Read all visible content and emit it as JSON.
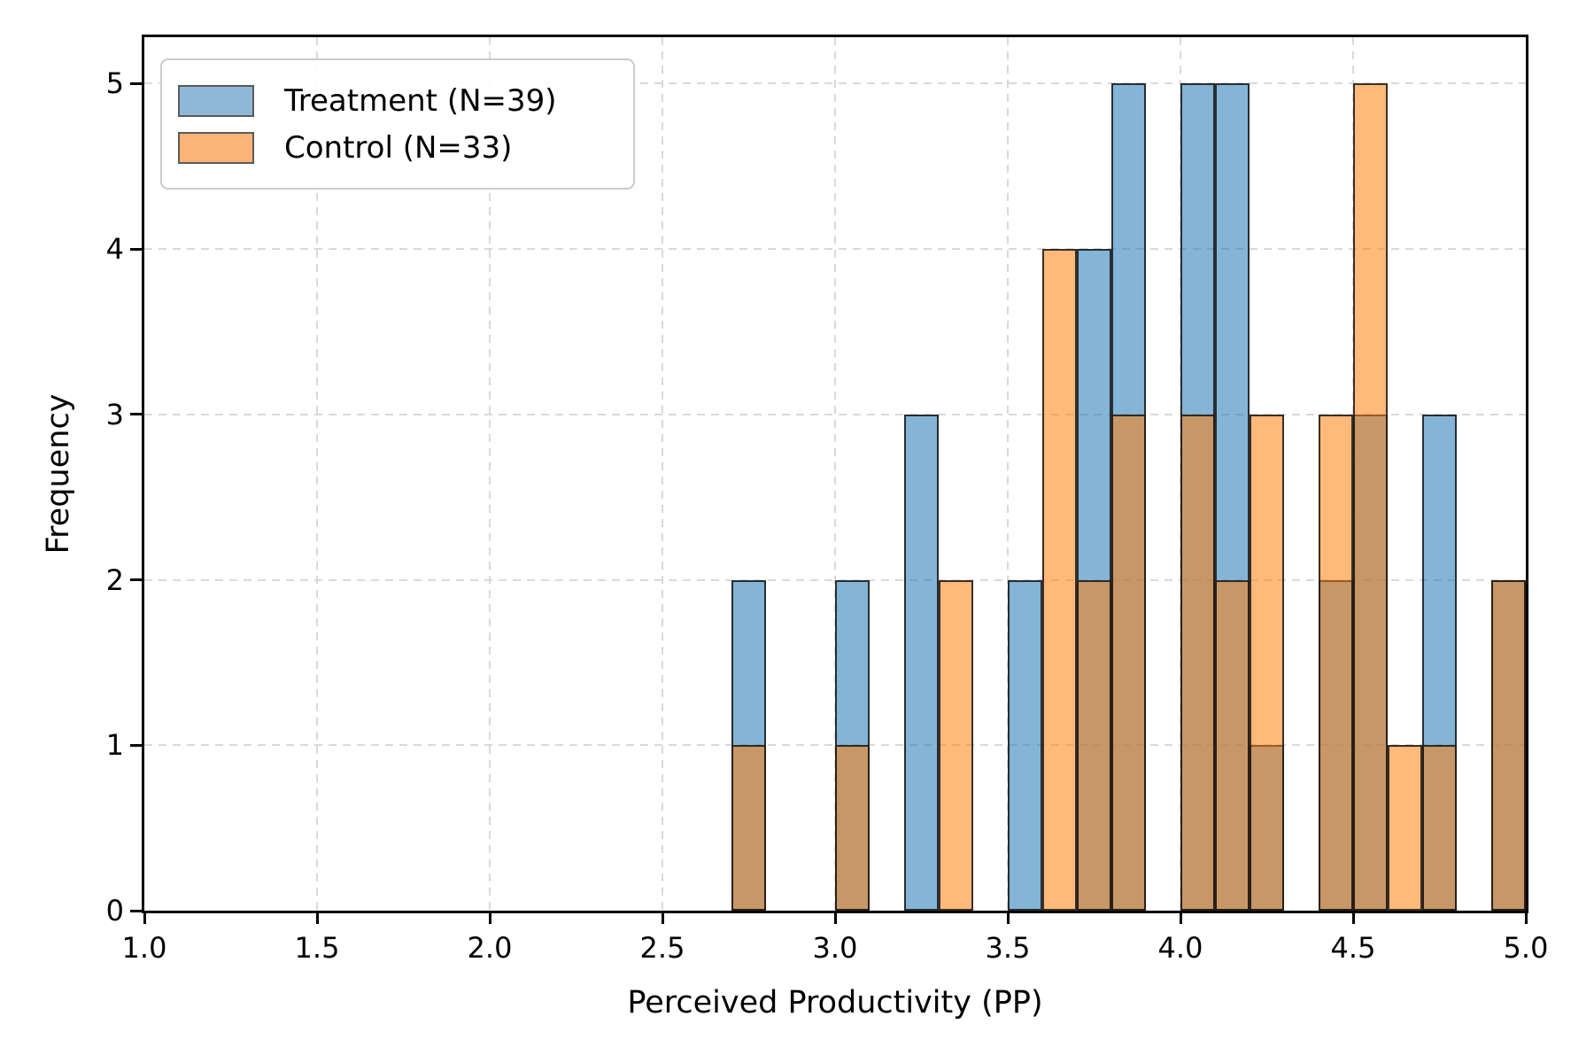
{
  "chart_data": {
    "type": "bar",
    "subtype": "overlaid-histogram",
    "title": "",
    "xlabel": "Perceived Productivity (PP)",
    "ylabel": "Frequency",
    "xlim": [
      1.0,
      5.0
    ],
    "ylim": [
      0,
      5.28
    ],
    "grid": true,
    "grid_style": "dashed",
    "legend_position": "upper left",
    "bin_width": 0.1,
    "x_ticks": [
      1.0,
      1.5,
      2.0,
      2.5,
      3.0,
      3.5,
      4.0,
      4.5,
      5.0
    ],
    "x_tick_labels": [
      "1.0",
      "1.5",
      "2.0",
      "2.5",
      "3.0",
      "3.5",
      "4.0",
      "4.5",
      "5.0"
    ],
    "y_ticks": [
      0,
      1,
      2,
      3,
      4,
      5
    ],
    "y_tick_labels": [
      "0",
      "1",
      "2",
      "3",
      "4",
      "5"
    ],
    "series": [
      {
        "name": "Treatment (N=39)",
        "n": 39,
        "fill": "rgba(31,119,180,0.55)",
        "fill_flat": "#84bad6",
        "bins": [
          [
            2.7,
            2
          ],
          [
            3.0,
            2
          ],
          [
            3.2,
            3
          ],
          [
            3.5,
            2
          ],
          [
            3.7,
            4
          ],
          [
            3.8,
            5
          ],
          [
            4.0,
            5
          ],
          [
            4.1,
            5
          ],
          [
            4.2,
            1
          ],
          [
            4.4,
            2
          ],
          [
            4.5,
            3
          ],
          [
            4.7,
            3
          ],
          [
            4.9,
            2
          ]
        ]
      },
      {
        "name": "Control (N=33)",
        "n": 33,
        "fill": "rgba(255,127,14,0.55)",
        "fill_flat": "#ffb97a",
        "bins": [
          [
            2.7,
            1
          ],
          [
            3.0,
            1
          ],
          [
            3.3,
            2
          ],
          [
            3.6,
            4
          ],
          [
            3.7,
            2
          ],
          [
            3.8,
            3
          ],
          [
            4.0,
            3
          ],
          [
            4.1,
            2
          ],
          [
            4.2,
            3
          ],
          [
            4.4,
            3
          ],
          [
            4.5,
            5
          ],
          [
            4.6,
            1
          ],
          [
            4.7,
            1
          ],
          [
            4.9,
            2
          ]
        ]
      }
    ],
    "overlap_color": "#c89a68"
  },
  "legend": {
    "items": [
      {
        "label": "Treatment (N=39)",
        "swatch_color": "#8fb8d8"
      },
      {
        "label": "Control (N=33)",
        "swatch_color": "#fbb377"
      }
    ]
  },
  "colors": {
    "background": "#ffffff",
    "spine": "#000000",
    "gridline": "#d9d9d9",
    "bar_edge": "rgba(22,22,22,0.85)",
    "text": "#000000",
    "legend_border": "#cccccc"
  }
}
